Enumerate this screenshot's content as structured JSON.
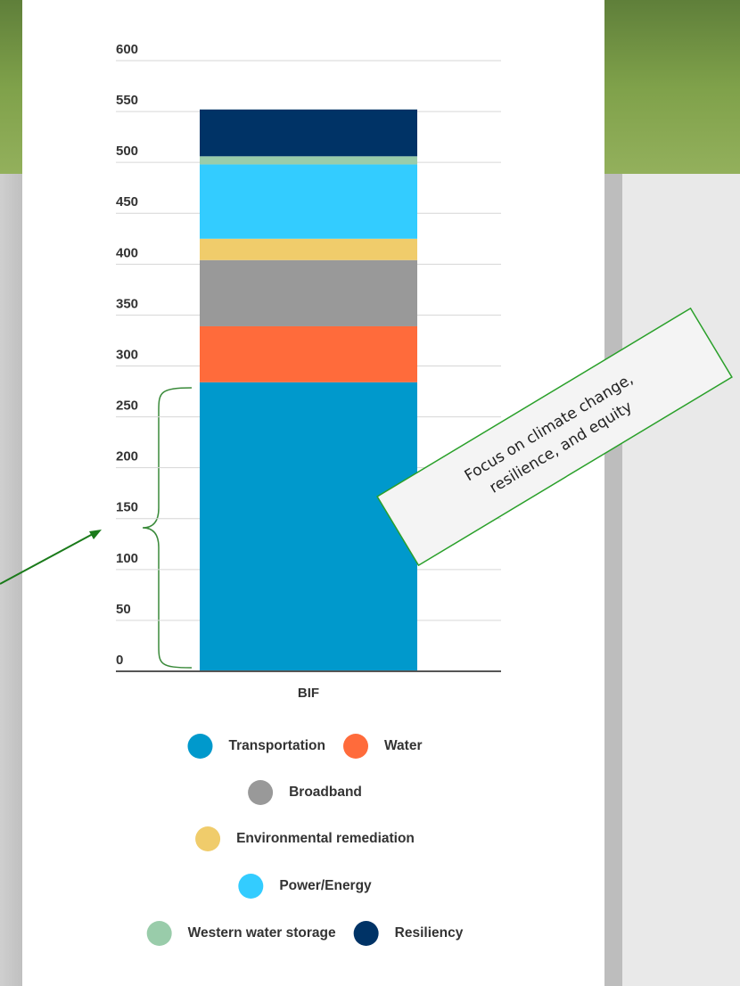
{
  "chart_data": {
    "type": "bar",
    "stacked": true,
    "categories": [
      "BIF"
    ],
    "series": [
      {
        "name": "Transportation",
        "color": "#0099cc",
        "values": [
          284
        ]
      },
      {
        "name": "Water",
        "color": "#ff6b3b",
        "values": [
          55
        ]
      },
      {
        "name": "Broadband",
        "color": "#999999",
        "values": [
          65
        ]
      },
      {
        "name": "Environmental remediation",
        "color": "#f0cc6b",
        "values": [
          21
        ]
      },
      {
        "name": "Power/Energy",
        "color": "#33ccff",
        "values": [
          73
        ]
      },
      {
        "name": "Western water storage",
        "color": "#99ccaa",
        "values": [
          8
        ]
      },
      {
        "name": "Resiliency",
        "color": "#003366",
        "values": [
          46
        ]
      }
    ],
    "ylim": [
      0,
      600
    ],
    "yticks": [
      0,
      50,
      100,
      150,
      200,
      250,
      300,
      350,
      400,
      450,
      500,
      550,
      600
    ],
    "grid": true,
    "legend": "bottom",
    "annotation": [
      "Focus on climate change,",
      "resilience, and equity"
    ]
  }
}
